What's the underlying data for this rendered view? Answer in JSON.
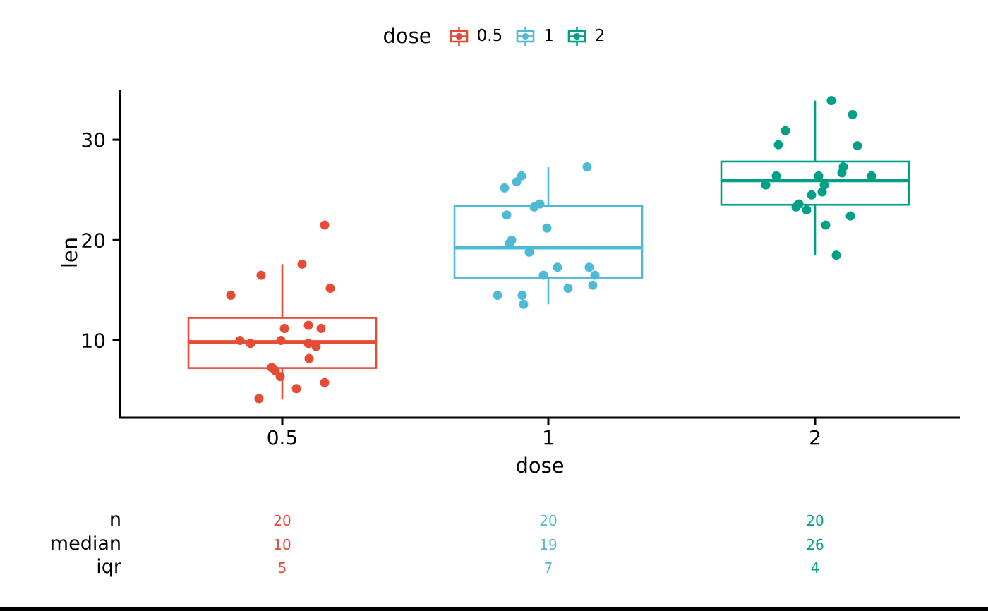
{
  "page": {
    "background": "#ffffff"
  },
  "legend": {
    "title": "dose",
    "position": "top",
    "items": [
      {
        "label": "0.5",
        "color": "#E64B35"
      },
      {
        "label": "1",
        "color": "#4DBBD5"
      },
      {
        "label": "2",
        "color": "#00A087"
      }
    ]
  },
  "axes": {
    "x_title": "dose",
    "y_title": "len"
  },
  "summary_table": {
    "rows": [
      {
        "label": "n",
        "values": [
          "20",
          "20",
          "20"
        ]
      },
      {
        "label": "median",
        "values": [
          "10",
          "19",
          "26"
        ]
      },
      {
        "label": "iqr",
        "values": [
          "5",
          "7",
          "4"
        ]
      }
    ]
  },
  "chart_data": {
    "type": "boxplot",
    "title": "",
    "xlabel": "dose",
    "ylabel": "len",
    "categories": [
      "0.5",
      "1",
      "2"
    ],
    "yticks": [
      10,
      20,
      30
    ],
    "ylim": [
      2.3,
      35
    ],
    "grid": false,
    "legend_position": "top",
    "groups": [
      {
        "label": "0.5",
        "color": "#E64B35",
        "n": 20,
        "median": 9.85,
        "iqr": 5,
        "box": {
          "q1": 7.25,
          "median": 9.85,
          "q3": 12.25,
          "whisker_low": 4.2,
          "whisker_high": 17.6
        },
        "points": [
          [
            -73,
            14.5
          ],
          [
            -30,
            16.5
          ],
          [
            28,
            17.6
          ],
          [
            60,
            21.5
          ],
          [
            68,
            15.2
          ],
          [
            3,
            11.2
          ],
          [
            37,
            11.5
          ],
          [
            55,
            11.2
          ],
          [
            -60,
            10.0
          ],
          [
            -45,
            9.7
          ],
          [
            -2,
            10.0
          ],
          [
            37,
            9.7
          ],
          [
            48,
            9.4
          ],
          [
            38,
            8.2
          ],
          [
            -15,
            7.3
          ],
          [
            -10,
            7.0
          ],
          [
            -3,
            6.4
          ],
          [
            60,
            5.8
          ],
          [
            20,
            5.2
          ],
          [
            -33,
            4.2
          ]
        ]
      },
      {
        "label": "1",
        "color": "#4DBBD5",
        "n": 20,
        "median": 19.25,
        "iqr": 7,
        "box": {
          "q1": 16.25,
          "median": 19.25,
          "q3": 23.38,
          "whisker_low": 13.6,
          "whisker_high": 27.3
        },
        "points": [
          [
            -7,
            16.5
          ],
          [
            66,
            16.5
          ],
          [
            28,
            15.2
          ],
          [
            13,
            17.3
          ],
          [
            -59,
            22.5
          ],
          [
            58,
            17.3
          ],
          [
            -35,
            13.6
          ],
          [
            -72,
            14.5
          ],
          [
            -27,
            18.8
          ],
          [
            63,
            15.5
          ],
          [
            -55,
            19.7
          ],
          [
            -20,
            23.3
          ],
          [
            -12,
            23.6
          ],
          [
            -38,
            26.4
          ],
          [
            -52,
            20.0
          ],
          [
            -62,
            25.2
          ],
          [
            -45,
            25.8
          ],
          [
            -2,
            21.2
          ],
          [
            -37,
            14.5
          ],
          [
            55,
            27.3
          ]
        ]
      },
      {
        "label": "2",
        "color": "#00A087",
        "n": 20,
        "median": 25.95,
        "iqr": 4,
        "box": {
          "q1": 23.52,
          "median": 25.95,
          "q3": 27.83,
          "whisker_low": 18.5,
          "whisker_high": 33.9
        },
        "points": [
          [
            -23,
            23.6
          ],
          [
            30,
            18.5
          ],
          [
            23,
            33.9
          ],
          [
            -70,
            25.5
          ],
          [
            -55,
            26.4
          ],
          [
            53,
            32.5
          ],
          [
            38,
            26.7
          ],
          [
            15,
            21.5
          ],
          [
            -27,
            23.3
          ],
          [
            -52,
            29.5
          ],
          [
            13,
            25.5
          ],
          [
            5,
            26.4
          ],
          [
            50,
            22.4
          ],
          [
            -5,
            24.5
          ],
          [
            10,
            24.8
          ],
          [
            -42,
            30.9
          ],
          [
            80,
            26.4
          ],
          [
            40,
            27.3
          ],
          [
            60,
            29.4
          ],
          [
            -12,
            23.0
          ]
        ]
      }
    ]
  }
}
